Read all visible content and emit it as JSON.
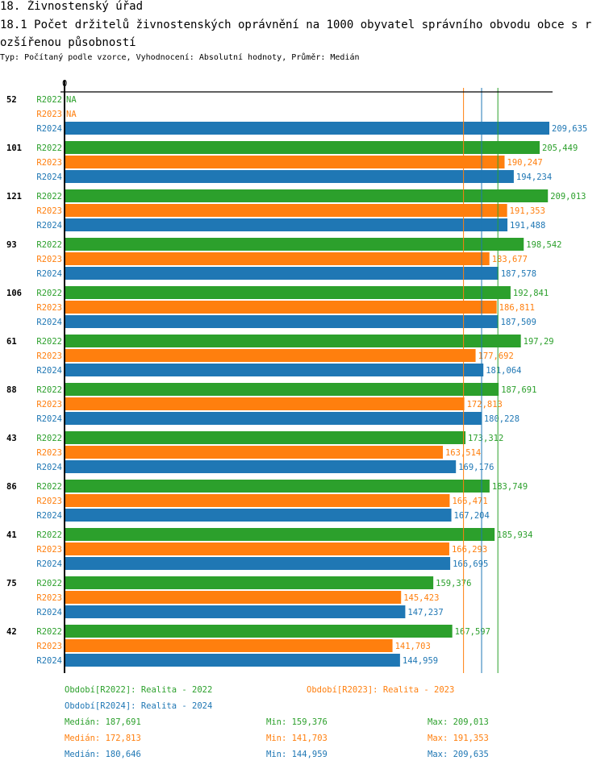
{
  "header": {
    "section": "18. Živnostenský úřad",
    "title": "18.1 Počet držitelů živnostenských oprávnění na 1000 obyvatel správního obvodu obce s rozšířenou působností",
    "subtitle": "Typ: Počítaný podle vzorce, Vyhodnocení: Absolutní hodnoty, Průměr: Medián"
  },
  "chart_data": {
    "type": "bar",
    "orientation": "horizontal",
    "xtick": "0",
    "xlim": [
      0,
      215
    ],
    "colors": {
      "R2022": "#2ca02c",
      "R2023": "#ff7f0e",
      "R2024": "#1f77b4"
    },
    "series_names": [
      "R2022",
      "R2023",
      "R2024"
    ],
    "groups": [
      {
        "label": "52",
        "values": [
          null,
          null,
          209.635
        ],
        "labels": [
          "NA",
          "NA",
          "209,635"
        ]
      },
      {
        "label": "101",
        "values": [
          205.449,
          190.247,
          194.234
        ],
        "labels": [
          "205,449",
          "190,247",
          "194,234"
        ]
      },
      {
        "label": "121",
        "values": [
          209.013,
          191.353,
          191.488
        ],
        "labels": [
          "209,013",
          "191,353",
          "191,488"
        ]
      },
      {
        "label": "93",
        "values": [
          198.542,
          183.677,
          187.578
        ],
        "labels": [
          "198,542",
          "183,677",
          "187,578"
        ]
      },
      {
        "label": "106",
        "values": [
          192.841,
          186.811,
          187.509
        ],
        "labels": [
          "192,841",
          "186,811",
          "187,509"
        ]
      },
      {
        "label": "61",
        "values": [
          197.29,
          177.692,
          181.064
        ],
        "labels": [
          "197,29",
          "177,692",
          "181,064"
        ]
      },
      {
        "label": "88",
        "values": [
          187.691,
          172.813,
          180.228
        ],
        "labels": [
          "187,691",
          "172,813",
          "180,228"
        ]
      },
      {
        "label": "43",
        "values": [
          173.312,
          163.514,
          169.176
        ],
        "labels": [
          "173,312",
          "163,514",
          "169,176"
        ]
      },
      {
        "label": "86",
        "values": [
          183.749,
          166.471,
          167.204
        ],
        "labels": [
          "183,749",
          "166,471",
          "167,204"
        ]
      },
      {
        "label": "41",
        "values": [
          185.934,
          166.293,
          166.695
        ],
        "labels": [
          "185,934",
          "166,293",
          "166,695"
        ]
      },
      {
        "label": "75",
        "values": [
          159.376,
          145.423,
          147.237
        ],
        "labels": [
          "159,376",
          "145,423",
          "147,237"
        ]
      },
      {
        "label": "42",
        "values": [
          167.597,
          141.703,
          144.959
        ],
        "labels": [
          "167,597",
          "141,703",
          "144,959"
        ]
      }
    ],
    "median_lines": {
      "R2022": 187.691,
      "R2023": 172.813,
      "R2024": 180.646
    }
  },
  "legend": {
    "periods": [
      "Období[R2022]: Realita - 2022",
      "Období[R2023]: Realita - 2023",
      "Období[R2024]: Realita - 2024"
    ],
    "stats": [
      [
        "Medián: 187,691",
        "Min: 159,376",
        "Max: 209,013"
      ],
      [
        "Medián: 172,813",
        "Min: 141,703",
        "Max: 191,353"
      ],
      [
        "Medián: 180,646",
        "Min: 144,959",
        "Max: 209,635"
      ]
    ]
  }
}
